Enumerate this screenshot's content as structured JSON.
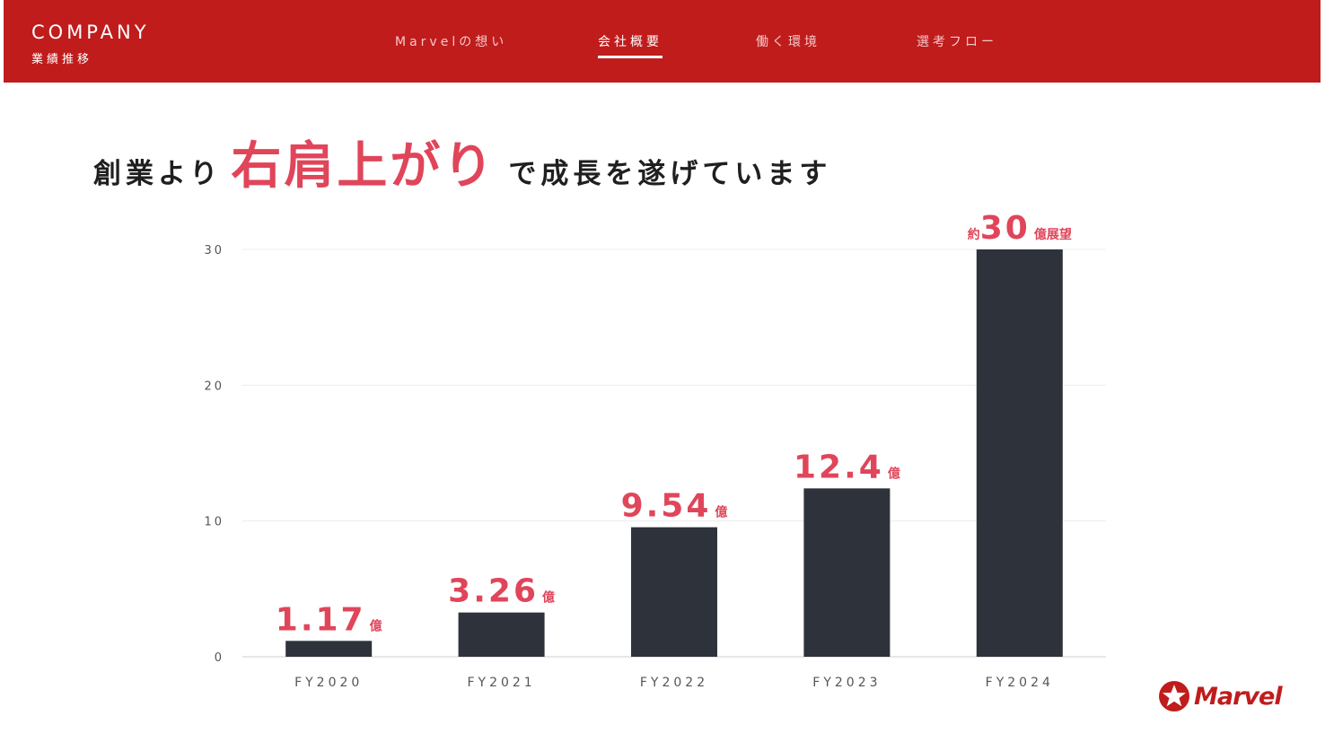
{
  "header": {
    "brand_en": "COMPANY",
    "brand_jp": "業績推移",
    "nav": [
      {
        "label": "Marvelの想い",
        "active": false
      },
      {
        "label": "会社概要",
        "active": true
      },
      {
        "label": "働く環境",
        "active": false
      },
      {
        "label": "選考フロー",
        "active": false
      }
    ]
  },
  "headline": {
    "prefix": "創業より",
    "emphasis": "右肩上がり",
    "suffix": "で成長を遂げています"
  },
  "colors": {
    "header_bg": "#c01c1c",
    "accent": "#e0455a",
    "bar": "#2e333b",
    "grid": "#ececec",
    "axis_text": "#555555"
  },
  "chart_data": {
    "type": "bar",
    "title": "",
    "xlabel": "",
    "ylabel": "",
    "categories": [
      "FY2020",
      "FY2021",
      "FY2022",
      "FY2023",
      "FY2024"
    ],
    "values": [
      1.17,
      3.26,
      9.54,
      12.4,
      30
    ],
    "data_labels": [
      {
        "prefix": "",
        "value": "1.17",
        "unit": "億"
      },
      {
        "prefix": "",
        "value": "3.26",
        "unit": "億"
      },
      {
        "prefix": "",
        "value": "9.54",
        "unit": "億"
      },
      {
        "prefix": "",
        "value": "12.4",
        "unit": "億"
      },
      {
        "prefix": "約",
        "value": "30",
        "unit": "億展望"
      }
    ],
    "ylim": [
      0,
      30
    ],
    "yticks": [
      0,
      10,
      20,
      30
    ],
    "grid": true
  },
  "logo": {
    "text": "Marvel",
    "icon": "star-badge-icon"
  }
}
